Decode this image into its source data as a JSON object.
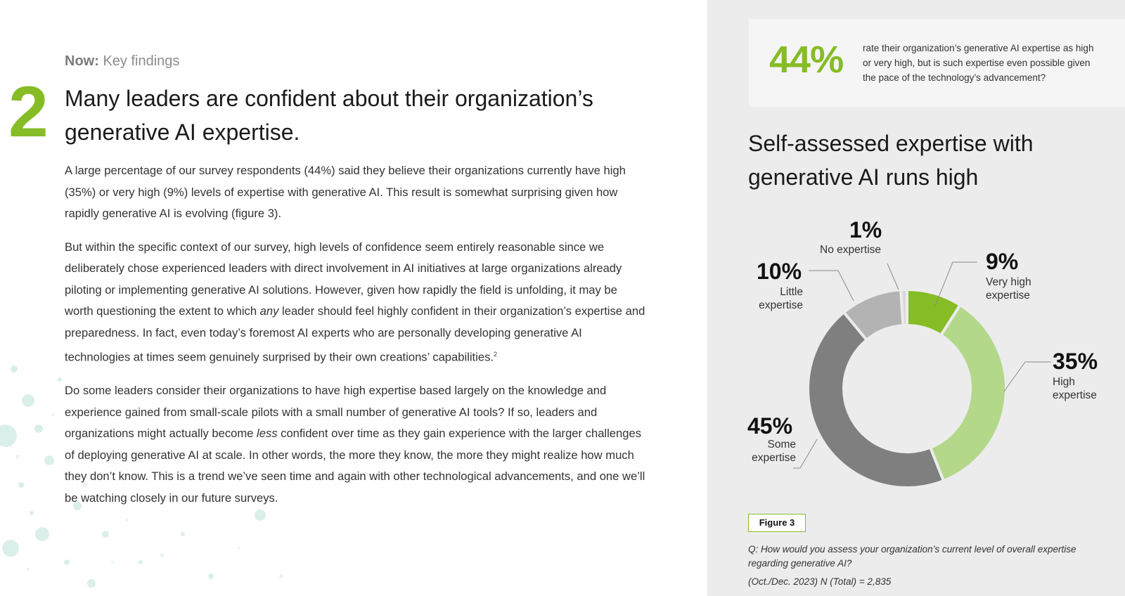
{
  "section": {
    "label_bold": "Now:",
    "label_rest": " Key findings"
  },
  "finding_number": "2",
  "headline": "Many leaders are confident about their organization’s generative AI expertise.",
  "paragraphs": {
    "p1": "A large percentage of our survey respondents (44%) said they believe their organizations currently have high (35%) or very high (9%) levels of expertise with generative AI. This result is somewhat surprising given how rapidly generative AI is evolving (figure 3).",
    "p2a": "But within the specific context of our survey, high levels of confidence seem entirely reasonable since we deliberately chose experienced leaders with direct involvement in AI initiatives at large organizations already piloting or implementing generative AI solutions. However, given how rapidly the field is unfolding, it may be worth questioning the extent to which ",
    "p2_em": "any",
    "p2b": " leader should feel highly confident in their organization’s expertise and preparedness. In fact, even today’s foremost AI experts who are personally developing generative AI technologies at times seem genuinely surprised by their own creations’ capabilities.",
    "p2_sup": "2",
    "p3a": "Do some leaders consider their organizations to have high expertise based largely on the knowledge and experience gained from small-scale pilots with a small number of generative AI tools? If so, leaders and organizations might actually become ",
    "p3_em": "less",
    "p3b": " confident over time as they gain experience with the larger challenges of deploying generative AI at scale. In other words, the more they know, the more they might realize how much they don’t know. This is a trend we’ve seen time and again with other technological advancements, and one we’ll be watching closely in our future surveys."
  },
  "callout": {
    "percent": "44%",
    "text": "rate their organization’s generative AI expertise as high or very high, but is such expertise even possible given the pace of the technology’s advancement?"
  },
  "colors": {
    "accent": "#86bc25",
    "light_green": "#b4d88a",
    "dark_gray": "#7f7f7f",
    "light_gray": "#b3b3b3",
    "pale": "#d9d9d9"
  },
  "chart_data": {
    "type": "pie",
    "donut": true,
    "title": "Self-assessed expertise with generative AI runs high",
    "slices": [
      {
        "label": "Very high expertise",
        "value": 9,
        "display": "9%",
        "color": "#86bc25"
      },
      {
        "label": "High expertise",
        "value": 35,
        "display": "35%",
        "color": "#b4d88a"
      },
      {
        "label": "Some expertise",
        "value": 45,
        "display": "45%",
        "color": "#7f7f7f"
      },
      {
        "label": "Little expertise",
        "value": 10,
        "display": "10%",
        "color": "#b3b3b3"
      },
      {
        "label": "No expertise",
        "value": 1,
        "display": "1%",
        "color": "#d9d9d9"
      }
    ]
  },
  "chart_labels": {
    "very_high": {
      "pct": "9%",
      "line1": "Very high",
      "line2": "expertise"
    },
    "high": {
      "pct": "35%",
      "line1": "High",
      "line2": "expertise"
    },
    "some": {
      "pct": "45%",
      "line1": "Some",
      "line2": "expertise"
    },
    "little": {
      "pct": "10%",
      "line1": "Little",
      "line2": "expertise"
    },
    "none": {
      "pct": "1%",
      "line1": "No expertise"
    }
  },
  "figure": {
    "badge": "Figure 3",
    "question": "Q: How would you assess your organization’s current level of overall expertise regarding generative AI?",
    "source": "(Oct./Dec. 2023) N (Total) = 2,835"
  }
}
